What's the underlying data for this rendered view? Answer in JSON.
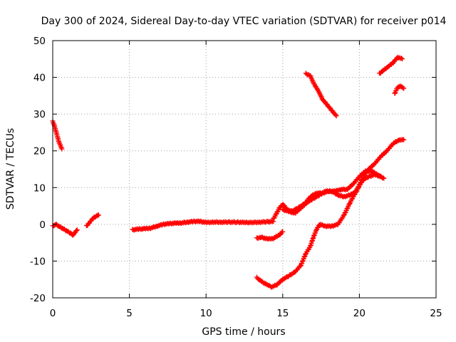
{
  "chart_data": {
    "type": "scatter",
    "title": "Day 300 of 2024, Sidereal Day-to-day VTEC variation (SDTVAR) for receiver p014",
    "xlabel": "GPS time / hours",
    "ylabel": "SDTVAR / TECUs",
    "xlim": [
      0,
      25
    ],
    "ylim": [
      -20,
      50
    ],
    "x_ticks": [
      0,
      5,
      10,
      15,
      20,
      25
    ],
    "y_ticks": [
      -20,
      -10,
      0,
      10,
      20,
      30,
      40,
      50
    ],
    "x_tick_labels": [
      "0",
      "5",
      "10",
      "15",
      "20",
      "25"
    ],
    "y_tick_labels": [
      "-20",
      "-10",
      "0",
      "10",
      "20",
      "30",
      "40",
      "50"
    ],
    "grid": true,
    "grid_style": "dotted",
    "marker": "plus",
    "color": "#ff0000",
    "series": [
      {
        "x": [
          0.0,
          0.1,
          0.2,
          0.3,
          0.4,
          0.5,
          0.6
        ],
        "y": [
          28,
          27,
          25.5,
          24,
          22.5,
          21.5,
          20.5
        ]
      },
      {
        "x": [
          0.0,
          0.2,
          0.4,
          0.6,
          0.8,
          1.0,
          1.2,
          1.3,
          1.4,
          1.6
        ],
        "y": [
          -0.5,
          0,
          -0.5,
          -1,
          -1.5,
          -2,
          -2.5,
          -3,
          -2.5,
          -1.5
        ]
      },
      {
        "x": [
          2.2,
          2.4,
          2.6,
          2.8,
          3.0
        ],
        "y": [
          -0.5,
          0.5,
          1.5,
          2.2,
          2.5
        ]
      },
      {
        "x": [
          5.2,
          5.6,
          6.0,
          6.4,
          6.8,
          7.2,
          7.6,
          8.0,
          8.4,
          8.8,
          9.2,
          9.6,
          10.0,
          10.5,
          11.0,
          11.5,
          12.0,
          12.5,
          13.0,
          13.5,
          14.0,
          14.4
        ],
        "y": [
          -1.5,
          -1.3,
          -1.2,
          -1.0,
          -0.5,
          0,
          0.2,
          0.3,
          0.4,
          0.6,
          0.8,
          0.8,
          0.5,
          0.6,
          0.6,
          0.6,
          0.6,
          0.5,
          0.5,
          0.6,
          0.7,
          0.8
        ]
      },
      {
        "x": [
          14.4,
          14.6,
          14.8,
          15.0,
          15.3,
          15.6,
          16.0,
          16.4,
          16.8,
          17.2,
          17.6,
          18.0,
          18.4,
          18.8,
          19.2,
          19.6,
          20.0,
          20.4,
          20.8,
          21.2,
          21.6
        ],
        "y": [
          1.5,
          3.0,
          4.5,
          5.5,
          4.0,
          3.5,
          4.5,
          5.5,
          7.5,
          8.5,
          8.5,
          9.0,
          9.0,
          9.5,
          9.5,
          11.0,
          13.0,
          14.5,
          14.5,
          13.5,
          12.5
        ]
      },
      {
        "x": [
          15.0,
          15.4,
          15.8,
          16.2,
          16.6,
          17.0,
          17.4,
          17.8,
          18.2,
          18.6,
          19.0,
          19.4,
          19.8,
          20.2,
          20.6,
          21.0,
          21.4,
          21.8,
          22.2,
          22.6,
          22.9
        ],
        "y": [
          4.0,
          3.5,
          3.0,
          4.5,
          6.0,
          7.0,
          8.0,
          9.0,
          9.0,
          8.0,
          7.5,
          8.0,
          9.0,
          12.5,
          15.0,
          16.5,
          18.5,
          20.0,
          22.0,
          23.0,
          23.0
        ]
      },
      {
        "x": [
          13.3,
          13.6,
          14.0,
          14.4,
          14.8,
          15.0
        ],
        "y": [
          -3.8,
          -3.5,
          -4.0,
          -3.8,
          -2.8,
          -2.0
        ]
      },
      {
        "x": [
          13.3,
          13.6,
          14.0,
          14.3,
          14.6,
          15.0,
          15.4,
          15.8,
          16.2,
          16.5,
          16.8,
          17.0,
          17.2,
          17.4,
          17.8,
          18.2,
          18.6,
          19.0,
          19.4,
          19.8,
          20.2,
          20.6,
          21.0,
          21.4
        ],
        "y": [
          -14.5,
          -15.5,
          -16.5,
          -17.0,
          -16.5,
          -15.0,
          -14.0,
          -13.0,
          -11.0,
          -8.0,
          -6.0,
          -3.5,
          -1.5,
          0,
          -0.5,
          -0.5,
          0,
          2.5,
          6.0,
          9.0,
          12.0,
          13.0,
          13.5,
          13.0
        ]
      },
      {
        "x": [
          16.5,
          16.8,
          17.0,
          17.3,
          17.6,
          17.9,
          18.2,
          18.5
        ],
        "y": [
          41.0,
          40.5,
          38.5,
          36.5,
          34.0,
          32.5,
          31.0,
          29.5
        ]
      },
      {
        "x": [
          21.3,
          21.6,
          21.9,
          22.2,
          22.5,
          22.8
        ],
        "y": [
          41.0,
          42.0,
          43.0,
          44.0,
          45.5,
          45.0
        ]
      },
      {
        "x": [
          22.3,
          22.45,
          22.6,
          22.75,
          22.9
        ],
        "y": [
          35.5,
          37.0,
          37.5,
          37.5,
          37.0
        ]
      }
    ]
  }
}
